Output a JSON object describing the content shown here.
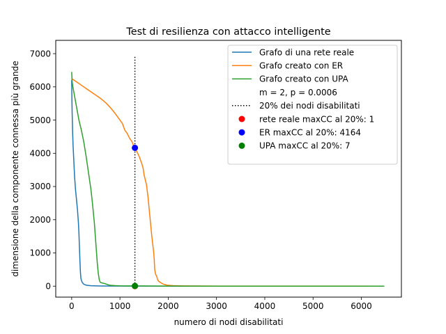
{
  "chart_data": {
    "type": "line",
    "title": "Test di resilienza con attacco intelligente",
    "xlabel": "numero di nodi disabilitati",
    "ylabel": "dimensione della componente connessa più grande",
    "xlim": [
      -330,
      6830
    ],
    "ylim": [
      -330,
      7400
    ],
    "xticks": [
      0,
      1000,
      2000,
      3000,
      4000,
      5000,
      6000
    ],
    "yticks": [
      0,
      1000,
      2000,
      3000,
      4000,
      5000,
      6000,
      7000
    ],
    "grid": false,
    "legend_position": "top-right",
    "series": [
      {
        "name": "Grafo di una rete reale",
        "color": "#1f77b4",
        "x": [
          0,
          5,
          10,
          20,
          30,
          40,
          50,
          60,
          80,
          100,
          120,
          140,
          150,
          160,
          170,
          180,
          190,
          200,
          220,
          250,
          300,
          400,
          600,
          1000,
          2000,
          4000,
          6476
        ],
        "y": [
          6200,
          5600,
          5200,
          4600,
          4200,
          3900,
          3600,
          3300,
          2900,
          2600,
          2300,
          1900,
          1600,
          1200,
          800,
          450,
          250,
          180,
          110,
          60,
          30,
          12,
          5,
          2,
          1,
          1,
          1
        ]
      },
      {
        "name": "Grafo creato con ER",
        "color": "#ff7f0e",
        "x": [
          0,
          100,
          200,
          300,
          400,
          500,
          600,
          700,
          800,
          900,
          1000,
          1050,
          1100,
          1150,
          1200,
          1250,
          1300,
          1350,
          1400,
          1450,
          1480,
          1500,
          1550,
          1580,
          1600,
          1620,
          1640,
          1660,
          1680,
          1700,
          1710,
          1720,
          1740,
          1760,
          1780,
          1800,
          1850,
          1900,
          1950,
          2000,
          2100,
          2300,
          3000,
          6476
        ],
        "y": [
          6250,
          6150,
          6050,
          5950,
          5850,
          5750,
          5650,
          5530,
          5380,
          5200,
          5000,
          4900,
          4700,
          4600,
          4450,
          4350,
          4164,
          4050,
          3900,
          3700,
          3550,
          3350,
          3050,
          2700,
          2400,
          2100,
          1800,
          1500,
          1250,
          1000,
          800,
          500,
          350,
          300,
          200,
          150,
          100,
          60,
          40,
          25,
          15,
          8,
          3,
          1
        ]
      },
      {
        "name": "Grafo creato con UPA",
        "color": "#2ca02c",
        "x": [
          0,
          10,
          25,
          50,
          100,
          150,
          200,
          250,
          300,
          350,
          400,
          430,
          450,
          470,
          490,
          510,
          530,
          550,
          570,
          590,
          620,
          680,
          720,
          760,
          800,
          900,
          1000,
          1100,
          1200,
          1310,
          1600,
          2000,
          3000,
          6476
        ],
        "y": [
          6450,
          6150,
          6000,
          5800,
          5400,
          5000,
          4700,
          4350,
          3900,
          3400,
          2900,
          2500,
          2200,
          1900,
          1500,
          1100,
          700,
          400,
          200,
          120,
          100,
          80,
          60,
          40,
          25,
          15,
          10,
          9,
          8,
          7,
          5,
          3,
          1,
          1
        ]
      }
    ],
    "vertical_line": {
      "name": "20% dei nodi disabilitati",
      "color": "#000000",
      "style": "dotted",
      "x": 1310,
      "y_range": [
        0,
        6950
      ]
    },
    "points": [
      {
        "name": "rete reale maxCC al 20%: 1",
        "color": "#ff0000",
        "x": 1310,
        "y": 1
      },
      {
        "name": "ER maxCC al 20%: 4164",
        "color": "#0000ff",
        "x": 1310,
        "y": 4164
      },
      {
        "name": "UPA maxCC al 20%: 7",
        "color": "#008000",
        "x": 1310,
        "y": 7
      }
    ],
    "legend_note": "m = 2, p = 0.0006"
  }
}
